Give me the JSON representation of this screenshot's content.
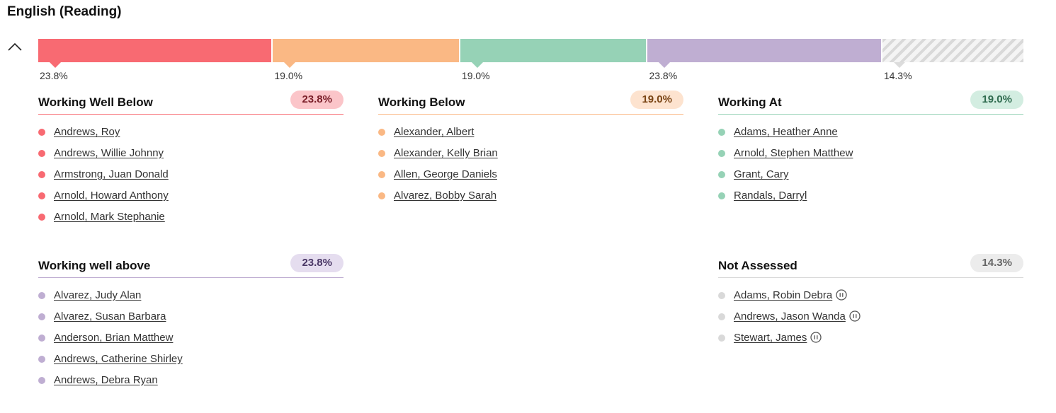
{
  "title": "English (Reading)",
  "icons": {
    "collapse": "chevron-up-icon",
    "paused": "pause-circle-icon"
  },
  "distribution": [
    {
      "key": "well-below",
      "percent": 23.8,
      "label": "23.8%",
      "color": "#f86a72"
    },
    {
      "key": "below",
      "percent": 19.0,
      "label": "19.0%",
      "color": "#fab884"
    },
    {
      "key": "at",
      "percent": 19.0,
      "label": "19.0%",
      "color": "#96d2b6"
    },
    {
      "key": "well-above",
      "percent": 23.8,
      "label": "23.8%",
      "color": "#bfaed2"
    },
    {
      "key": "not-assessed",
      "percent": 14.3,
      "label": "14.3%",
      "color": "#dcdcdc"
    }
  ],
  "groups": {
    "well_below": {
      "title": "Working Well Below",
      "badge": "23.8%",
      "color": "#f86a72",
      "badge_bg": "#fbc5c9",
      "badge_fg": "#7a1e28",
      "students": [
        "Andrews, Roy",
        "Andrews, Willie Johnny",
        "Armstrong, Juan Donald",
        "Arnold, Howard Anthony",
        "Arnold, Mark Stephanie"
      ]
    },
    "below": {
      "title": "Working Below",
      "badge": "19.0%",
      "color": "#fab884",
      "badge_bg": "#fde3cf",
      "badge_fg": "#7a4414",
      "students": [
        "Alexander, Albert",
        "Alexander, Kelly Brian",
        "Allen, George Daniels",
        "Alvarez, Bobby Sarah"
      ]
    },
    "at": {
      "title": "Working At",
      "badge": "19.0%",
      "color": "#96d2b6",
      "badge_bg": "#d3ede1",
      "badge_fg": "#2f6b4f",
      "students": [
        "Adams, Heather Anne",
        "Arnold, Stephen Matthew",
        "Grant, Cary",
        "Randals, Darryl"
      ]
    },
    "well_above": {
      "title": "Working well above",
      "badge": "23.8%",
      "color": "#bfaed2",
      "badge_bg": "#e5ddef",
      "badge_fg": "#4a3766",
      "students": [
        "Alvarez, Judy Alan",
        "Alvarez, Susan Barbara",
        "Anderson, Brian Matthew",
        "Andrews, Catherine Shirley",
        "Andrews, Debra Ryan"
      ]
    },
    "not_assessed": {
      "title": "Not Assessed",
      "badge": "14.3%",
      "color": "#d9d9d9",
      "badge_bg": "#ececec",
      "badge_fg": "#666666",
      "students": [
        "Adams, Robin Debra",
        "Andrews, Jason Wanda",
        "Stewart, James"
      ],
      "paused": true
    }
  }
}
